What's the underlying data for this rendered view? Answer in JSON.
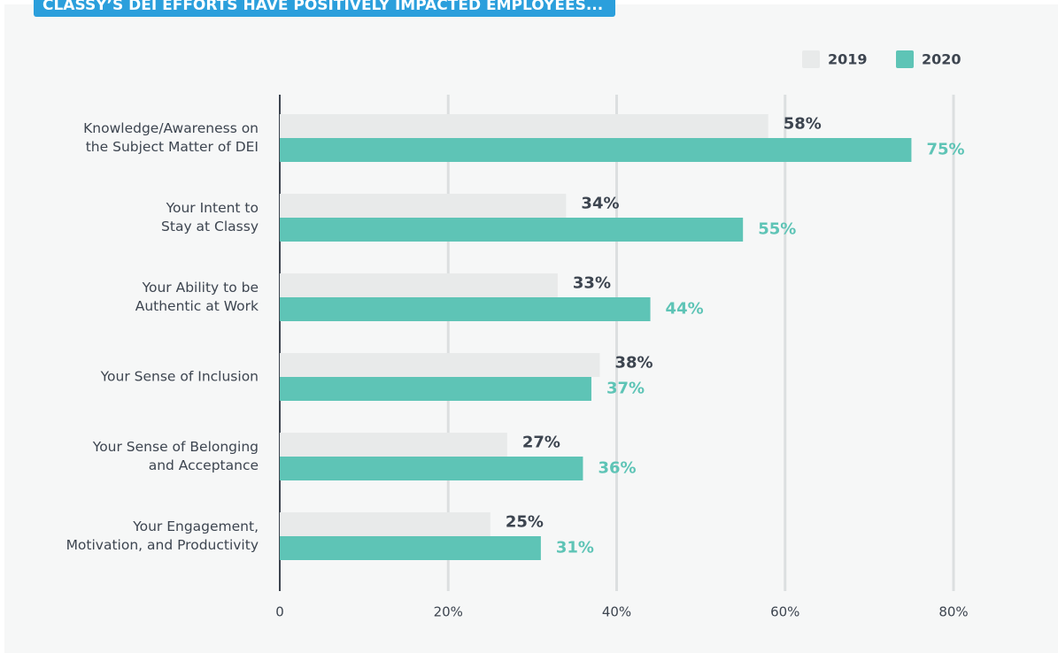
{
  "chart_data": {
    "type": "bar",
    "orientation": "horizontal",
    "title": "CLASSY’S DEI EFFORTS HAVE POSITIVELY IMPACTED EMPLOYEES...",
    "categories": [
      "Knowledge/Awareness on\nthe Subject Matter of DEI",
      "Your Intent to\nStay at Classy",
      "Your Ability to be\nAuthentic at Work",
      "Your Sense of Inclusion",
      "Your Sense of Belonging\nand Acceptance",
      "Your Engagement,\nMotivation, and Productivity"
    ],
    "series": [
      {
        "name": "2019",
        "color": "#e8eaea",
        "label_color": "#3d4550",
        "values": [
          58,
          34,
          33,
          38,
          27,
          25
        ],
        "value_labels": [
          "58%",
          "34%",
          "33%",
          "38%",
          "27%",
          "25%"
        ]
      },
      {
        "name": "2020",
        "color": "#5ec4b6",
        "label_color": "#5ec4b6",
        "values": [
          75,
          55,
          44,
          37,
          36,
          31
        ],
        "value_labels": [
          "75%",
          "55%",
          "44%",
          "37%",
          "36%",
          "31%"
        ]
      }
    ],
    "xlim": [
      0,
      80
    ],
    "xticks": [
      0,
      {
        "value": 20,
        "label": "20%"
      },
      {
        "value": 40,
        "label": "40%"
      },
      {
        "value": 60,
        "label": "60%"
      },
      {
        "value": 80,
        "label": "80%"
      }
    ],
    "grid": true,
    "legend": "top-right"
  }
}
